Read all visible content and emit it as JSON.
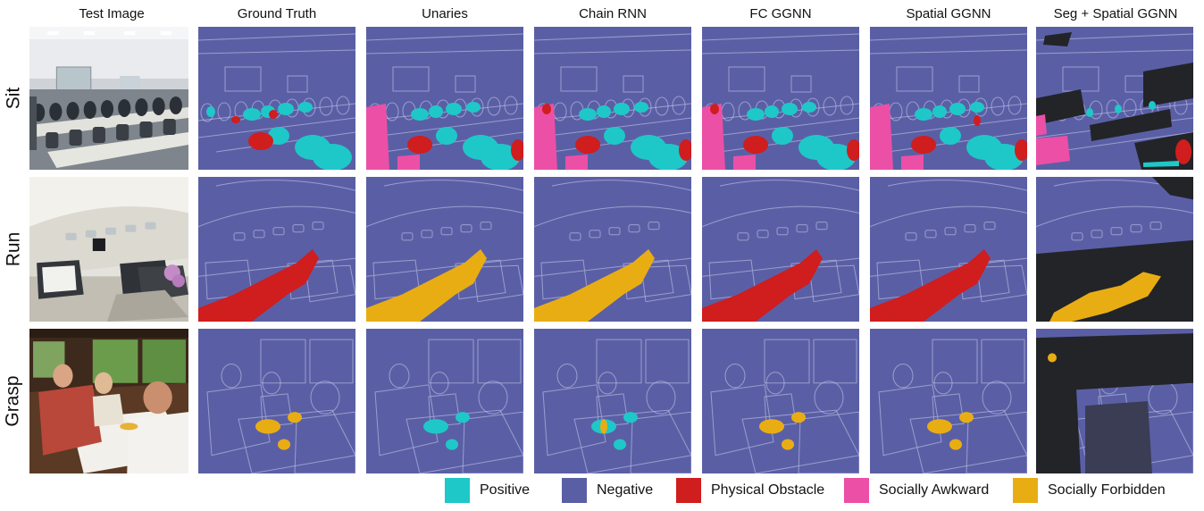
{
  "columns": [
    "Test Image",
    "Ground Truth",
    "Unaries",
    "Chain RNN",
    "FC GGNN",
    "Spatial GGNN",
    "Seg + Spatial GGNN"
  ],
  "rows": [
    "Sit",
    "Run",
    "Grasp"
  ],
  "legend": [
    {
      "label": "Positive",
      "color": "#1ec8c8"
    },
    {
      "label": "Negative",
      "color": "#5a5fa5"
    },
    {
      "label": "Physical Obstacle",
      "color": "#d01d1d"
    },
    {
      "label": "Socially Awkward",
      "color": "#ec4fa6"
    },
    {
      "label": "Socially Forbidden",
      "color": "#e9ad14"
    }
  ],
  "colors": {
    "positive": "#1ec8c8",
    "negative": "#5a5fa5",
    "obstacle": "#d01d1d",
    "awkward": "#ec4fa6",
    "forbidden": "#e9ad14",
    "unlabeled": "#222428"
  }
}
